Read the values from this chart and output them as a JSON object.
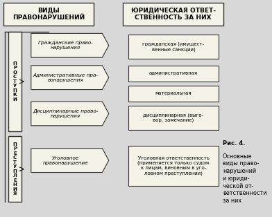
{
  "bg_color": "#d8d8d8",
  "title_left": "ВИДЫ\nПРАВОНАРУШЕНИЙ",
  "title_right": "ЮРИДИЧЕСКАЯ ОТВЕТ-\nСТВЕННОСТЬ ЗА НИХ",
  "left_label_top": "П\nР\nО\nС\nТ\nУ\nП\nК\nИ",
  "left_label_bottom": "П\nР\nЕ\nС\nТ\nУ\nП\nЛ\nЕ\nН\nИ\nЯ",
  "mid_boxes": [
    "Гражданские право-\nнарушения",
    "Административные пра-\nвонарушения",
    "Дисциплинарные право-\nнарушения",
    "Уголовное\nправонарушение"
  ],
  "right_boxes": [
    "гражданская (имущест-\nвенные санкции)",
    "административная",
    "материальная",
    "дисциплинарная (выго-\nвор, замечание)",
    "Уголовная ответственность\n(применяется только судом\nк лицам, виновным в уго-\nловном преступлении)"
  ],
  "caption_bold": "Рис. 4.",
  "caption_rest": "\nОсновные\nвиды право-\nнарушений\nи юриди-\nческой от-\nветственности\nза них",
  "box_color": "#f0ede0",
  "border_color": "#333333",
  "arrow_color": "#333333",
  "white_color": "#f5f2e8"
}
